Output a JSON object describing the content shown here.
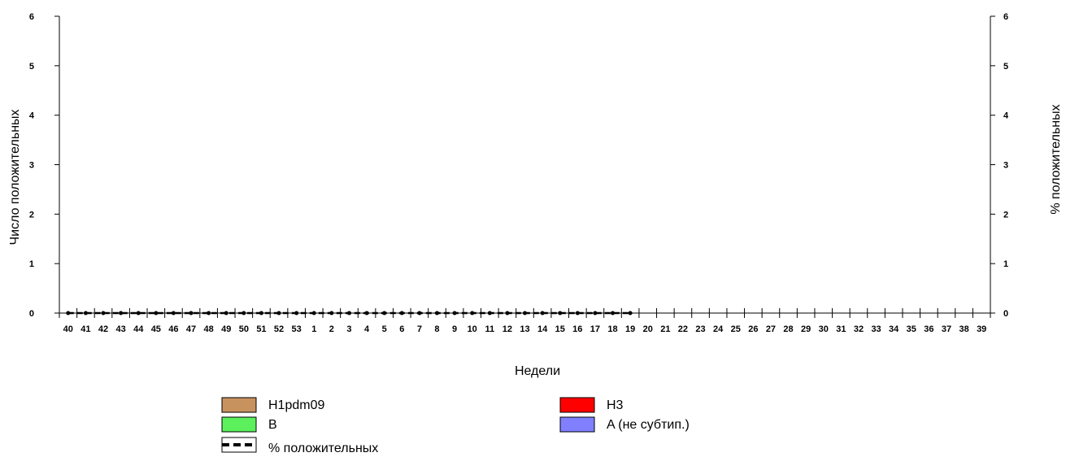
{
  "chart_data": {
    "type": "bar",
    "xlabel": "Недели",
    "ylabel_left": "Число положительных",
    "ylabel_right": "% положительных",
    "ylim_left": [
      0,
      6
    ],
    "ylim_right": [
      0,
      6
    ],
    "y_ticks_left": [
      "0",
      "1",
      "2",
      "3",
      "4",
      "5",
      "6"
    ],
    "y_ticks_right": [
      "0",
      "1",
      "2",
      "3",
      "4",
      "5",
      "6"
    ],
    "grid": false,
    "legend_position": "bottom",
    "categories": [
      "40",
      "41",
      "42",
      "43",
      "44",
      "45",
      "46",
      "47",
      "48",
      "49",
      "50",
      "51",
      "52",
      "53",
      "1",
      "2",
      "3",
      "4",
      "5",
      "6",
      "7",
      "8",
      "9",
      "10",
      "11",
      "12",
      "13",
      "14",
      "15",
      "16",
      "17",
      "18",
      "19",
      "20",
      "21",
      "22",
      "23",
      "24",
      "25",
      "26",
      "27",
      "28",
      "29",
      "30",
      "31",
      "32",
      "33",
      "34",
      "35",
      "36",
      "37",
      "38",
      "39"
    ],
    "series": [
      {
        "name": "H1pdm09",
        "kind": "bar",
        "color": "#c8925e",
        "values": [
          0,
          0,
          0,
          0,
          0,
          0,
          0,
          0,
          0,
          0,
          0,
          0,
          0,
          0,
          0,
          0,
          0,
          0,
          0,
          0,
          0,
          0,
          0,
          0,
          0,
          0,
          0,
          0,
          0,
          0,
          0,
          0,
          0,
          null,
          null,
          null,
          null,
          null,
          null,
          null,
          null,
          null,
          null,
          null,
          null,
          null,
          null,
          null,
          null,
          null,
          null,
          null,
          null
        ]
      },
      {
        "name": "H3",
        "kind": "bar",
        "color": "#ff0000",
        "values": [
          0,
          0,
          0,
          0,
          0,
          0,
          0,
          0,
          0,
          0,
          0,
          0,
          0,
          0,
          0,
          0,
          0,
          0,
          0,
          0,
          0,
          0,
          0,
          0,
          0,
          0,
          0,
          0,
          0,
          0,
          0,
          0,
          0,
          null,
          null,
          null,
          null,
          null,
          null,
          null,
          null,
          null,
          null,
          null,
          null,
          null,
          null,
          null,
          null,
          null,
          null,
          null,
          null
        ]
      },
      {
        "name": "B",
        "kind": "bar",
        "color": "#5cf05c",
        "values": [
          0,
          0,
          0,
          0,
          0,
          0,
          0,
          0,
          0,
          0,
          0,
          0,
          0,
          0,
          0,
          0,
          0,
          0,
          0,
          0,
          0,
          0,
          0,
          0,
          0,
          0,
          0,
          0,
          0,
          0,
          0,
          0,
          0,
          null,
          null,
          null,
          null,
          null,
          null,
          null,
          null,
          null,
          null,
          null,
          null,
          null,
          null,
          null,
          null,
          null,
          null,
          null,
          null
        ]
      },
      {
        "name": "A (не субтип.)",
        "kind": "bar",
        "color": "#8080ff",
        "values": [
          0,
          0,
          0,
          0,
          0,
          0,
          0,
          0,
          0,
          0,
          0,
          0,
          0,
          0,
          0,
          0,
          0,
          0,
          0,
          0,
          0,
          0,
          0,
          0,
          0,
          0,
          0,
          0,
          0,
          0,
          0,
          0,
          0,
          null,
          null,
          null,
          null,
          null,
          null,
          null,
          null,
          null,
          null,
          null,
          null,
          null,
          null,
          null,
          null,
          null,
          null,
          null,
          null
        ]
      },
      {
        "name": "% положительных",
        "kind": "line",
        "axis": "right",
        "color": "#000000",
        "values": [
          0,
          0,
          0,
          0,
          0,
          0,
          0,
          0,
          0,
          0,
          0,
          0,
          0,
          0,
          0,
          0,
          0,
          0,
          0,
          0,
          0,
          0,
          0,
          0,
          0,
          0,
          0,
          0,
          0,
          0,
          0,
          0,
          0,
          null,
          null,
          null,
          null,
          null,
          null,
          null,
          null,
          null,
          null,
          null,
          null,
          null,
          null,
          null,
          null,
          null,
          null,
          null,
          null
        ]
      }
    ]
  },
  "legend": [
    {
      "label": "H1pdm09",
      "color": "#c8925e",
      "kind": "box"
    },
    {
      "label": "H3",
      "color": "#ff0000",
      "kind": "box"
    },
    {
      "label": "B",
      "color": "#5cf05c",
      "kind": "box"
    },
    {
      "label": "A (не субтип.)",
      "color": "#8080ff",
      "kind": "box"
    },
    {
      "label": "% положительных",
      "color": "#000000",
      "kind": "dashed"
    }
  ]
}
